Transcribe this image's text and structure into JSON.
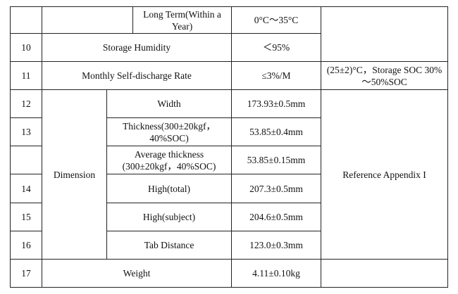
{
  "rows": {
    "storage_long_term": {
      "label": "Long Term(Within a Year)",
      "value": "0°C～35°C"
    },
    "r10": {
      "no": "10",
      "item": "Storage Humidity",
      "value": "＜95%"
    },
    "r11": {
      "no": "11",
      "item": "Monthly Self-discharge Rate",
      "value": "≤3%/M",
      "remark": "(25±2)°C，Storage SOC 30%～50%SOC"
    },
    "dimension": {
      "label": "Dimension",
      "remark": "Reference Appendix I",
      "r12": {
        "no": "12",
        "item": "Width",
        "value": "173.93±0.5mm"
      },
      "r13": {
        "no": "13",
        "item": "Thickness(300±20kgf，40%SOC)",
        "value": "53.85±0.4mm"
      },
      "avg": {
        "no": "",
        "item": "Average thickness (300±20kgf，40%SOC)",
        "value": "53.85±0.15mm"
      },
      "r14": {
        "no": "14",
        "item": "High(total)",
        "value": "207.3±0.5mm"
      },
      "r15": {
        "no": "15",
        "item": "High(subject)",
        "value": "204.6±0.5mm"
      },
      "r16": {
        "no": "16",
        "item": "Tab Distance",
        "value": "123.0±0.3mm"
      }
    },
    "r17": {
      "no": "17",
      "item": "Weight",
      "value": "4.11±0.10kg"
    }
  }
}
